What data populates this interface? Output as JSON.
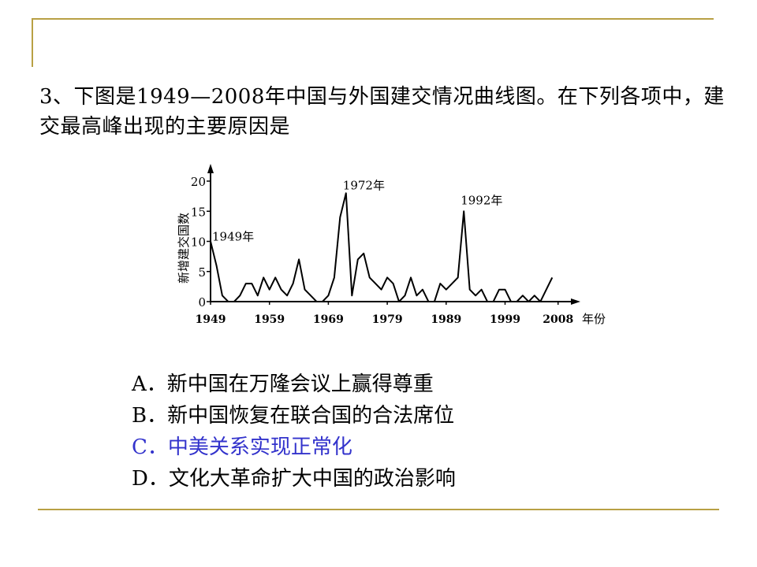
{
  "slide": {
    "question": "3、下图是1949—2008年中国与外国建交情况曲线图。在下列各项中，建交最高峰出现的主要原因是",
    "highlight_color": "#3333cc",
    "accent_color": "#b8a044"
  },
  "options": [
    {
      "letter": "A．",
      "text": "新中国在万隆会议上赢得尊重",
      "highlighted": false
    },
    {
      "letter": "B．",
      "text": "新中国恢复在联合国的合法席位",
      "highlighted": false
    },
    {
      "letter": "C．",
      "text": "中美关系实现正常化",
      "highlighted": true
    },
    {
      "letter": "D．",
      "text": "文化大革命扩大中国的政治影响",
      "highlighted": false
    }
  ],
  "chart_data": {
    "type": "line",
    "ylabel": "新增建交国数",
    "xlabel": "年份",
    "xlim": [
      1949,
      2008
    ],
    "ylim": [
      0,
      20
    ],
    "x_ticks": [
      "1949",
      "1959",
      "1969",
      "1979",
      "1989",
      "1999",
      "2008"
    ],
    "y_ticks": [
      "0",
      "5",
      "10",
      "15",
      "20"
    ],
    "annotations": [
      {
        "text": "1949年",
        "x": 1949,
        "y": 10
      },
      {
        "text": "1972年",
        "x": 1972,
        "y": 18
      },
      {
        "text": "1992年",
        "x": 1992,
        "y": 15
      }
    ],
    "series": [
      {
        "x": [
          1949,
          1950,
          1951,
          1952,
          1953,
          1954,
          1955,
          1956,
          1957,
          1958,
          1959,
          1960,
          1961,
          1962,
          1963,
          1964,
          1965,
          1966,
          1967,
          1968,
          1969,
          1970,
          1971,
          1972,
          1973,
          1974,
          1975,
          1976,
          1977,
          1978,
          1979,
          1980,
          1981,
          1982,
          1983,
          1984,
          1985,
          1986,
          1987,
          1988,
          1989,
          1990,
          1991,
          1992,
          1993,
          1994,
          1995,
          1996,
          1997,
          1998,
          1999,
          2000,
          2001,
          2002,
          2003,
          2004,
          2005,
          2006,
          2007
        ],
        "y": [
          10,
          6,
          1,
          0,
          0,
          1,
          3,
          3,
          1,
          4,
          2,
          4,
          2,
          1,
          3,
          7,
          2,
          1,
          0,
          0,
          1,
          4,
          14,
          18,
          1,
          7,
          8,
          4,
          3,
          2,
          4,
          3,
          0,
          1,
          4,
          1,
          2,
          0,
          0,
          3,
          2,
          3,
          4,
          15,
          2,
          1,
          2,
          0,
          0,
          2,
          2,
          0,
          0,
          1,
          0,
          1,
          0,
          2,
          4
        ]
      }
    ]
  }
}
